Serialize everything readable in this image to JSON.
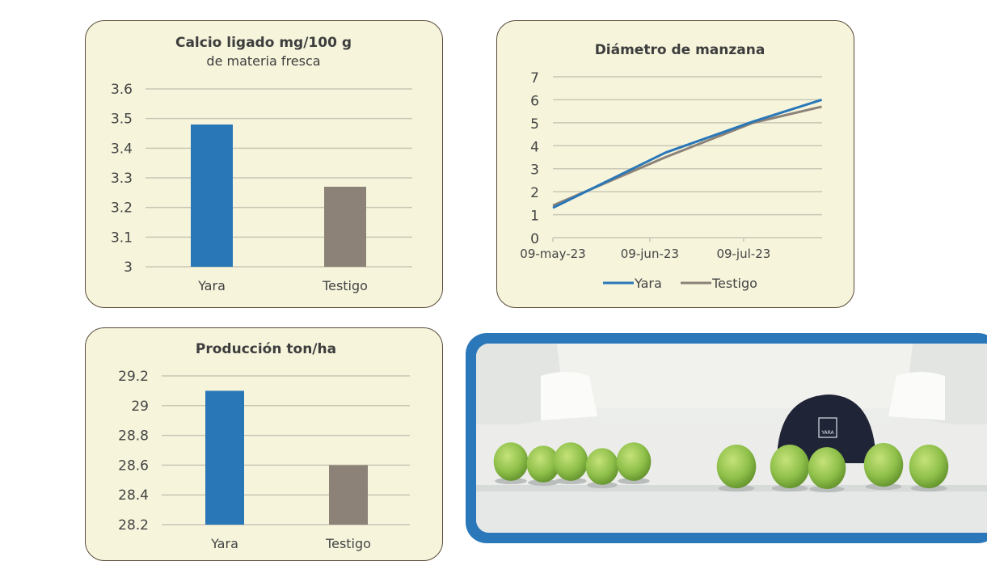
{
  "chart_data": [
    {
      "type": "bar",
      "title": "Calcio ligado mg/100 g",
      "subtitle": "de materia fresca",
      "categories": [
        "Yara",
        "Testigo"
      ],
      "values": [
        3.48,
        3.27
      ],
      "ylim": [
        3,
        3.6
      ],
      "yticks": [
        "3",
        "3.1",
        "3.2",
        "3.3",
        "3.4",
        "3.5",
        "3.6"
      ],
      "colors": [
        "#2a77b8",
        "#8c8277"
      ],
      "grid": true
    },
    {
      "type": "line",
      "title": "Diámetro de manzana",
      "ylim": [
        0,
        7
      ],
      "yticks": [
        "0",
        "1",
        "2",
        "3",
        "4",
        "5",
        "6",
        "7"
      ],
      "xticks": [
        "09-may-23",
        "09-jun-23",
        "09-jul-23"
      ],
      "x": [
        "2023-05-09",
        "2023-06-14",
        "2023-07-12",
        "2023-08-03"
      ],
      "series": [
        {
          "name": "Yara",
          "values": [
            1.3,
            3.7,
            5.05,
            6.0
          ],
          "color": "#2a77b8"
        },
        {
          "name": "Testigo",
          "values": [
            1.4,
            3.5,
            5.0,
            5.7
          ],
          "color": "#8c8277"
        }
      ],
      "legend": "bottom",
      "grid": true
    },
    {
      "type": "bar",
      "title": "Producción ton/ha",
      "categories": [
        "Yara",
        "Testigo"
      ],
      "values": [
        29.1,
        28.6
      ],
      "ylim": [
        28.2,
        29.2
      ],
      "yticks": [
        "28.2",
        "28.4",
        "28.6",
        "28.8",
        "29",
        "29.2"
      ],
      "colors": [
        "#2a77b8",
        "#8c8277"
      ],
      "grid": true
    }
  ],
  "photo": {
    "cap_logo": "YARA",
    "frame_color": "#2a78b9"
  }
}
